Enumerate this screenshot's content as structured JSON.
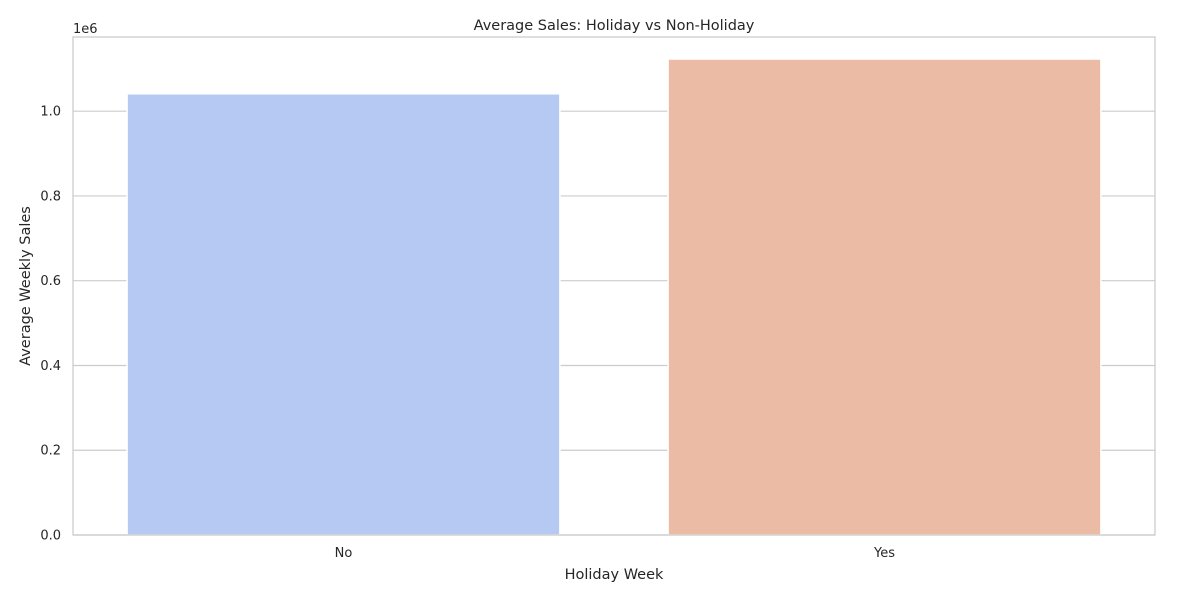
{
  "chart_data": {
    "type": "bar",
    "title": "Average Sales: Holiday vs Non-Holiday",
    "xlabel": "Holiday Week",
    "ylabel": "Average Weekly Sales",
    "categories": [
      "No",
      "Yes"
    ],
    "values": [
      1041000,
      1123000
    ],
    "colors": [
      "#b5c9f2",
      "#ebbba5"
    ],
    "ylim": [
      0,
      1175000
    ],
    "yticks": [
      0,
      200000,
      400000,
      600000,
      800000,
      1000000
    ],
    "ytick_labels": [
      "0.0",
      "0.2",
      "0.4",
      "0.6",
      "0.8",
      "1.0"
    ],
    "y_offset_label": "1e6",
    "grid": "y",
    "legend": "none"
  }
}
